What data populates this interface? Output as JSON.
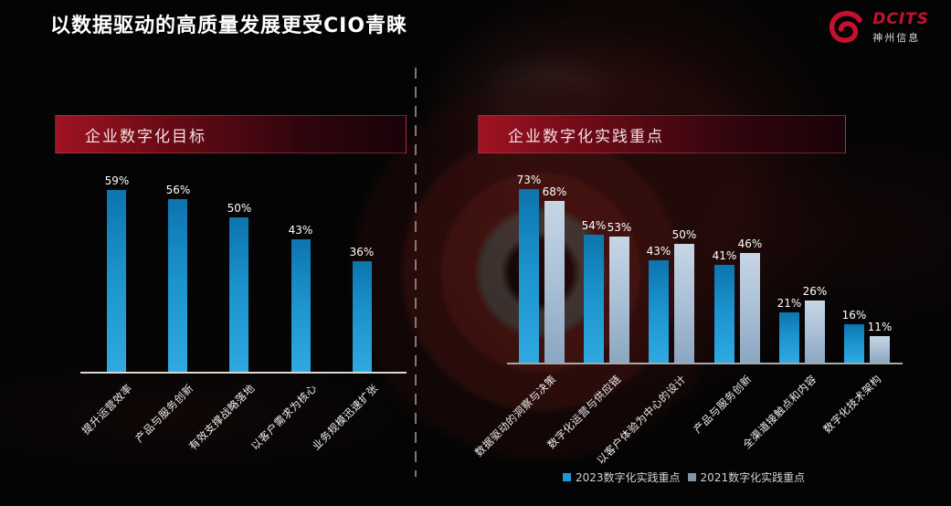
{
  "slide": {
    "title": "以数据驱动的高质量发展更受CIO青睐"
  },
  "logo": {
    "brand": "DCITS",
    "company": "神州信息",
    "icon": "dcits-swirl-icon",
    "color": "#c8102e"
  },
  "chart_data": [
    {
      "type": "bar",
      "title": "企业数字化目标",
      "categories": [
        "提升运营效率",
        "产品与服务创新",
        "有效支撑战略落地",
        "以客户需求为核心",
        "业务规模迅速扩张"
      ],
      "values": [
        59,
        56,
        50,
        43,
        36
      ],
      "unit": "%",
      "data_labels": [
        "59%",
        "56%",
        "50%",
        "43%",
        "36%"
      ],
      "bar_color": "#1f97d4",
      "ylim": [
        0,
        80
      ],
      "grid": false,
      "y_axis_visible": false,
      "x_label_rotation": -45
    },
    {
      "type": "bar",
      "title": "企业数字化实践重点",
      "categories": [
        "数据驱动的洞察与决策",
        "数字化运营与供应链",
        "以客户体验为中心的设计",
        "产品与服务创新",
        "全渠道接触点和内容",
        "数字化技术架构"
      ],
      "series": [
        {
          "name": "2023数字化实践重点",
          "color": "#1f97d4",
          "values": [
            73,
            54,
            43,
            41,
            21,
            16
          ]
        },
        {
          "name": "2021数字化实践重点",
          "color": "#7e93a8",
          "values": [
            68,
            53,
            50,
            46,
            26,
            11
          ]
        }
      ],
      "unit": "%",
      "ylim": [
        0,
        80
      ],
      "grid": false,
      "y_axis_visible": false,
      "x_label_rotation": -45,
      "legend_position": "bottom"
    }
  ]
}
